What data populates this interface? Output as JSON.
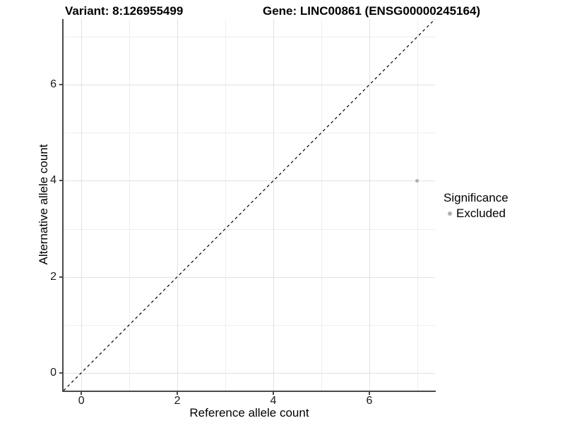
{
  "chart_data": {
    "type": "scatter",
    "title_left": "Variant: 8:126955499",
    "title_right": "Gene: LINC00861 (ENSG00000245164)",
    "xlabel": "Reference allele count",
    "ylabel": "Alternative allele count",
    "xlim": [
      -0.37,
      7.37
    ],
    "ylim": [
      -0.37,
      7.37
    ],
    "x_major_ticks": [
      0,
      2,
      4,
      6
    ],
    "x_minor_ticks": [
      1,
      3,
      5,
      7
    ],
    "y_major_ticks": [
      0,
      2,
      4,
      6
    ],
    "y_minor_ticks": [
      1,
      3,
      5,
      7
    ],
    "grid": "major and minor gridlines, light gray on white panel",
    "points": [
      {
        "x": 7,
        "y": 4,
        "series": "Excluded",
        "color": "#b0b0b0"
      }
    ],
    "reference_line": {
      "equation": "y = x",
      "style": "dashed",
      "color": "#000000"
    },
    "legend": {
      "title": "Significance",
      "position": "right",
      "items": [
        {
          "label": "Excluded",
          "marker": "circle",
          "color": "#b0b0b0"
        }
      ]
    }
  },
  "colors": {
    "background": "#ffffff",
    "grid_major": "#e2e2e2",
    "grid_minor": "#eeeeee",
    "axis_line": "#4a4a4a",
    "tick_text": "#1a1a1a",
    "point": "#b0b0b0"
  }
}
